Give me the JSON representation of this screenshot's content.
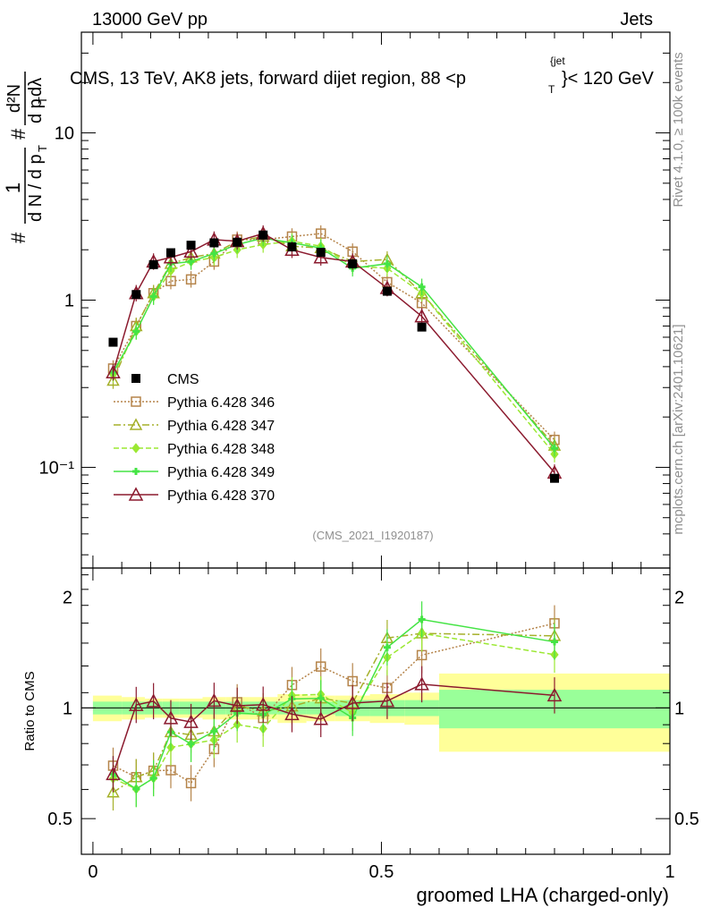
{
  "header": {
    "energy_label": "13000 GeV pp",
    "category_label": "Jets",
    "plot_title": "CMS, 13 TeV, AK8 jets, forward dijet region, 88 <p",
    "plot_title_sup": "{jet",
    "plot_title_sub": "T",
    "plot_title_end": "}< 120 GeV",
    "side_label_top": "Rivet 4.1.0, ≥ 100k events",
    "side_label_bottom": "mcplots.cern.ch [arXiv:2401.10621]",
    "analysis_tag": "(CMS_2021_I1920187)"
  },
  "y_axis_main": {
    "frac_one": "1",
    "frac_one_den": "d N / d p",
    "frac_one_den_sub": "T",
    "hash_a": "#",
    "frac_two_num": "d²N",
    "frac_two_den": "d p",
    "frac_two_den_sub": "T",
    "frac_two_den_end": " dλ",
    "hash_b": "#",
    "ticks": [
      {
        "label": "10⁻¹",
        "value": 0.1
      },
      {
        "label": "1",
        "value": 1
      },
      {
        "label": "10",
        "value": 10
      }
    ]
  },
  "y_axis_ratio": {
    "label": "Ratio to CMS",
    "ticks": [
      {
        "label": "0.5",
        "value": 0.5
      },
      {
        "label": "1",
        "value": 1
      },
      {
        "label": "2",
        "value": 2
      }
    ]
  },
  "x_axis": {
    "label": "groomed LHA (charged-only)",
    "ticks": [
      {
        "label": "0",
        "value": 0
      },
      {
        "label": "0.5",
        "value": 0.5
      },
      {
        "label": "1",
        "value": 1
      }
    ]
  },
  "chart_data": {
    "type": "line",
    "title": "CMS, 13 TeV, AK8 jets, forward dijet region, 88 < pT jet < 120 GeV",
    "xlabel": "groomed LHA (charged-only)",
    "ylabel": "1/(dN/dpT) d2N/(dpT dlambda)",
    "xlim": [
      -0.02,
      1.0
    ],
    "ylim": [
      0.025,
      40
    ],
    "yscale": "log",
    "ratio_ylim": [
      0.4,
      2.4
    ],
    "ratio_yscale": "log",
    "x": [
      0.035,
      0.075,
      0.105,
      0.135,
      0.17,
      0.21,
      0.25,
      0.295,
      0.345,
      0.395,
      0.45,
      0.51,
      0.57,
      0.8
    ],
    "data": {
      "name": "CMS",
      "color": "#000000",
      "values": [
        0.56,
        1.08,
        1.63,
        1.92,
        2.13,
        2.2,
        2.22,
        2.45,
        2.08,
        1.93,
        1.65,
        1.13,
        0.69,
        0.086
      ]
    },
    "ratio_bands": [
      {
        "x0": 0.0,
        "x1": 0.05,
        "stat": 0.04,
        "total": 0.08
      },
      {
        "x0": 0.05,
        "x1": 0.09,
        "stat": 0.04,
        "total": 0.07
      },
      {
        "x0": 0.09,
        "x1": 0.12,
        "stat": 0.04,
        "total": 0.06
      },
      {
        "x0": 0.12,
        "x1": 0.15,
        "stat": 0.04,
        "total": 0.06
      },
      {
        "x0": 0.15,
        "x1": 0.19,
        "stat": 0.04,
        "total": 0.06
      },
      {
        "x0": 0.19,
        "x1": 0.23,
        "stat": 0.04,
        "total": 0.07
      },
      {
        "x0": 0.23,
        "x1": 0.27,
        "stat": 0.04,
        "total": 0.07
      },
      {
        "x0": 0.27,
        "x1": 0.32,
        "stat": 0.04,
        "total": 0.07
      },
      {
        "x0": 0.32,
        "x1": 0.37,
        "stat": 0.04,
        "total": 0.09
      },
      {
        "x0": 0.37,
        "x1": 0.42,
        "stat": 0.04,
        "total": 0.08
      },
      {
        "x0": 0.42,
        "x1": 0.48,
        "stat": 0.05,
        "total": 0.08
      },
      {
        "x0": 0.48,
        "x1": 0.54,
        "stat": 0.05,
        "total": 0.09
      },
      {
        "x0": 0.54,
        "x1": 0.6,
        "stat": 0.05,
        "total": 0.1
      },
      {
        "x0": 0.6,
        "x1": 1.0,
        "stat": 0.12,
        "total": 0.24
      }
    ],
    "series": [
      {
        "name": "Pythia 6.428 346",
        "color": "#b5844a",
        "dash": "2,2",
        "marker": "square",
        "values": [
          0.39,
          0.7,
          1.1,
          1.3,
          1.33,
          1.7,
          2.3,
          2.3,
          2.4,
          2.5,
          1.95,
          1.28,
          0.96,
          0.146
        ]
      },
      {
        "name": "Pythia 6.428 347",
        "color": "#a5b02a",
        "dash": "8,3,2,3",
        "marker": "triangle",
        "values": [
          0.33,
          0.7,
          1.1,
          1.65,
          1.8,
          1.9,
          2.25,
          2.4,
          2.1,
          2.05,
          1.7,
          1.75,
          1.1,
          0.135
        ]
      },
      {
        "name": "Pythia 6.428 348",
        "color": "#9be832",
        "dash": "6,3",
        "marker": "diamond",
        "values": [
          0.36,
          0.65,
          1.05,
          1.5,
          1.7,
          1.8,
          2.0,
          2.15,
          2.25,
          2.1,
          1.6,
          1.55,
          1.1,
          0.12
        ]
      },
      {
        "name": "Pythia 6.428 349",
        "color": "#44e444",
        "dash": "",
        "marker": "cross",
        "values": [
          0.37,
          0.65,
          1.05,
          1.65,
          1.7,
          1.9,
          2.15,
          2.35,
          2.2,
          2.05,
          1.55,
          1.65,
          1.2,
          0.13
        ]
      },
      {
        "name": "Pythia 6.428 370",
        "color": "#8b1a2e",
        "dash": "",
        "marker": "open-triangle",
        "values": [
          0.37,
          1.1,
          1.7,
          1.8,
          1.95,
          2.3,
          2.25,
          2.5,
          2.0,
          1.8,
          1.7,
          1.18,
          0.8,
          0.093
        ]
      }
    ]
  }
}
